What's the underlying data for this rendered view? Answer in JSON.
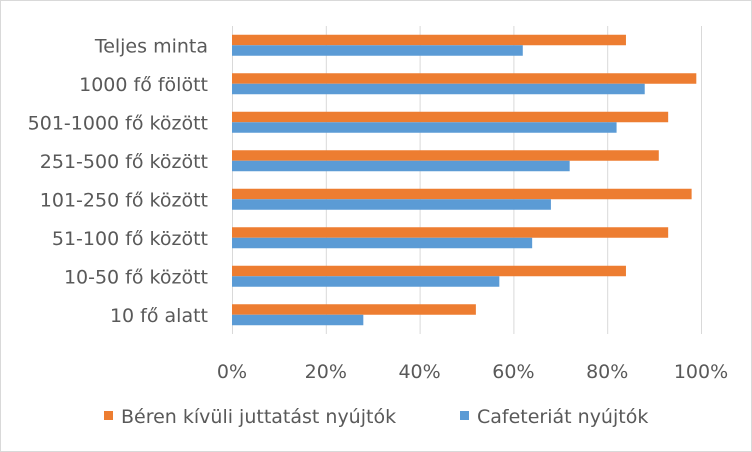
{
  "chart_data": {
    "type": "bar",
    "orientation": "horizontal",
    "categories": [
      "Teljes minta",
      "1000 fő fölött",
      "501-1000 fő között",
      "251-500 fő között",
      "101-250 fő között",
      "51-100 fő között",
      "10-50 fő között",
      "10 fő alatt"
    ],
    "series": [
      {
        "name": "Béren kívüli juttatást nyújtók",
        "color": "#ED7D31",
        "values": [
          84,
          99,
          93,
          91,
          98,
          93,
          84,
          52
        ]
      },
      {
        "name": "Cafeteriát nyújtók",
        "color": "#5B9BD5",
        "values": [
          62,
          88,
          82,
          72,
          68,
          64,
          57,
          28
        ]
      }
    ],
    "xlim": [
      0,
      100
    ],
    "xticks": [
      0,
      20,
      40,
      60,
      80,
      100
    ],
    "xtick_labels": [
      "0%",
      "20%",
      "40%",
      "60%",
      "80%",
      "100%"
    ],
    "grid": "vertical",
    "legend": "bottom",
    "title": "",
    "xlabel": "",
    "ylabel": ""
  }
}
